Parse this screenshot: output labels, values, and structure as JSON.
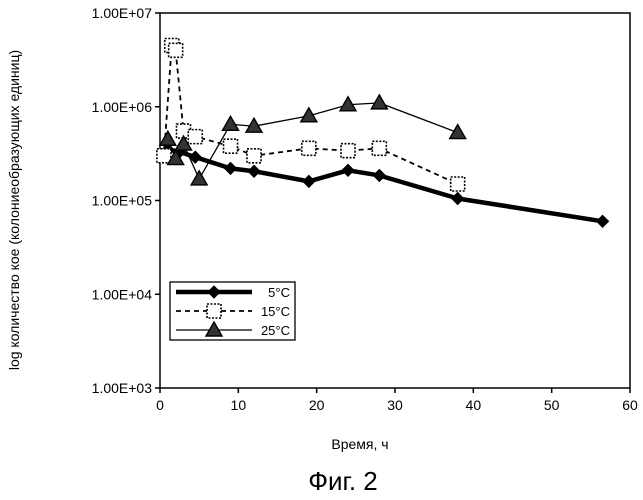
{
  "chart_data": {
    "type": "line",
    "title": "",
    "caption": "Фиг. 2",
    "xlabel": "Время, ч",
    "ylabel": "log количество кое (колониеобразующих единиц)",
    "xlim": [
      0,
      60
    ],
    "ylim": [
      1000,
      10000000
    ],
    "yscale": "log",
    "x_ticks": [
      0,
      10,
      20,
      30,
      40,
      50,
      60
    ],
    "y_ticks": [
      1000,
      10000,
      100000,
      1000000,
      10000000
    ],
    "x_tick_labels": [
      "0",
      "10",
      "20",
      "30",
      "40",
      "50",
      "60"
    ],
    "y_tick_labels": [
      "1.00E+03",
      "1.00E+04",
      "1.00E+05",
      "1.00E+06",
      "1.00E+07"
    ],
    "grid": false,
    "legend_position": "lower-left",
    "series": [
      {
        "name": "5°C",
        "marker": "diamond",
        "line": "thick-solid",
        "x": [
          1,
          2.5,
          4.5,
          9,
          12,
          19,
          24,
          28,
          38,
          56.5
        ],
        "y": [
          350000,
          330000,
          290000,
          220000,
          205000,
          160000,
          210000,
          185000,
          105000,
          60000
        ]
      },
      {
        "name": "15°C",
        "marker": "square",
        "line": "dashed",
        "x": [
          0.5,
          1.5,
          2,
          3,
          4.5,
          9,
          12,
          19,
          24,
          28,
          38
        ],
        "y": [
          300000,
          4500000,
          4000000,
          550000,
          480000,
          380000,
          300000,
          360000,
          340000,
          360000,
          150000
        ]
      },
      {
        "name": "25°C",
        "marker": "triangle",
        "line": "thin-solid",
        "x": [
          1,
          2,
          3,
          5,
          9,
          12,
          19,
          24,
          28,
          38
        ],
        "y": [
          450000,
          280000,
          400000,
          170000,
          650000,
          620000,
          800000,
          1050000,
          1100000,
          530000
        ]
      }
    ]
  }
}
